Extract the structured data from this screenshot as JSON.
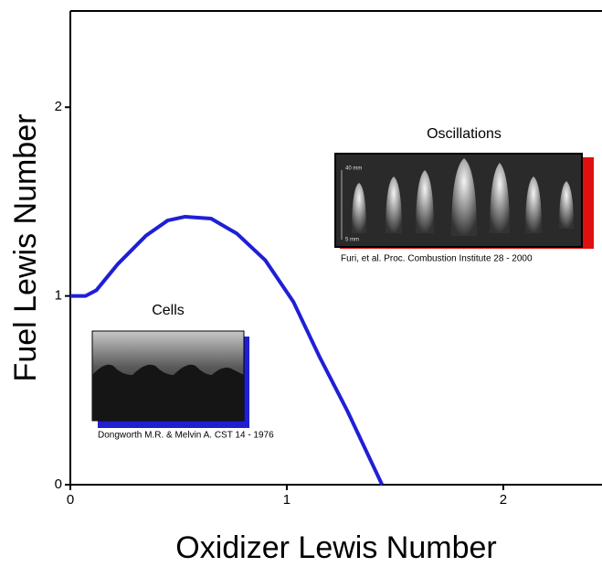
{
  "chart_data": {
    "type": "line",
    "x_label": "Oxidizer Lewis Number",
    "y_label": "Fuel Lewis Number",
    "xlim": [
      0,
      2.456
    ],
    "ylim": [
      0,
      2.51
    ],
    "xticks": [
      0,
      1,
      2
    ],
    "yticks": [
      0,
      1,
      2
    ],
    "series": [
      {
        "color": "#1f1fd6",
        "x": [
          0,
          0.07,
          0.12,
          0.22,
          0.35,
          0.45,
          0.53,
          0.65,
          0.77,
          0.9,
          1.03,
          1.15,
          1.28,
          1.44
        ],
        "values": [
          1,
          1,
          1.03,
          1.17,
          1.32,
          1.4,
          1.42,
          1.41,
          1.33,
          1.19,
          0.97,
          0.68,
          0.39,
          0.0
        ]
      }
    ],
    "annotations": {
      "cells_title": "Cells",
      "cells_citation": "Dongworth M.R. & Melvin A. CST 14 - 1976",
      "oscillations_title": "Oscillations",
      "oscillations_citation": "Furi, et al. Proc. Combustion Institute 28 - 2000",
      "scale_top": "40 mm",
      "scale_bottom": "5 mm"
    }
  }
}
